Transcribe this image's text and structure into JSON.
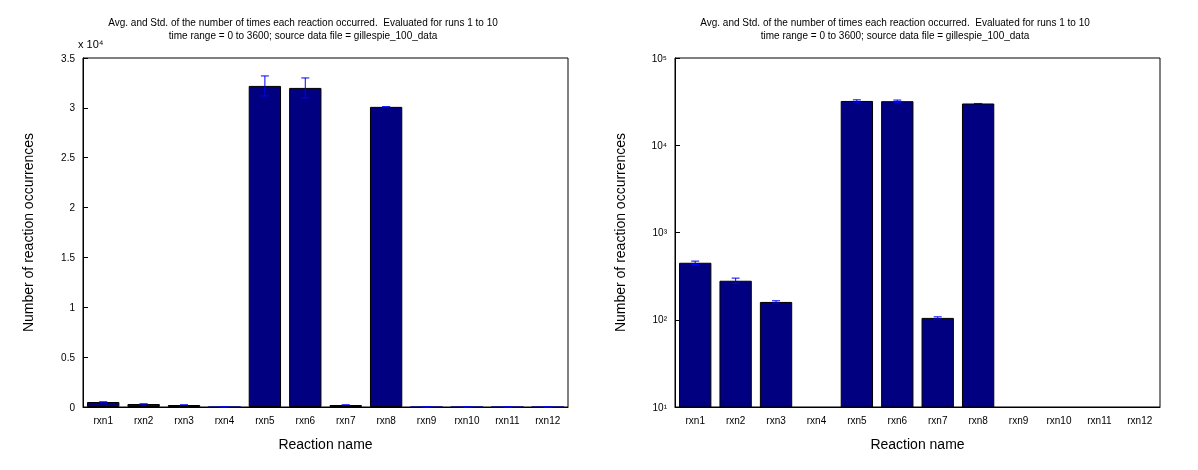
{
  "chart_data": [
    {
      "type": "bar",
      "title": "Avg. and Std. of the number of times each reaction occurred.  Evaluated for runs 1 to 10",
      "subtitle": "time range = 0 to 3600; source data file = gillespie_100_data",
      "xlabel": "Reaction name",
      "ylabel": "Number of reaction occurrences",
      "categories": [
        "rxn1",
        "rxn2",
        "rxn3",
        "rxn4",
        "rxn5",
        "rxn6",
        "rxn7",
        "rxn8",
        "rxn9",
        "rxn10",
        "rxn11",
        "rxn12"
      ],
      "values": [
        0.05,
        0.03,
        0.02,
        0,
        3.22,
        3.2,
        0.02,
        3.01,
        0,
        0,
        0,
        0
      ],
      "errors": [
        0,
        0,
        0,
        0,
        0.1,
        0.1,
        0,
        0,
        0,
        0,
        0,
        0
      ],
      "color": "#000080",
      "ylim": [
        0,
        3.5
      ],
      "yticks": [
        0,
        0.5,
        1,
        1.5,
        2,
        2.5,
        3,
        3.5
      ],
      "annotations": [
        "x 10⁴"
      ]
    },
    {
      "type": "bar",
      "title": "Avg. and Std. of the number of times each reaction occurred.  Evaluated for runs 1 to 10",
      "subtitle": "time range = 0 to 3600; source data file = gillespie_100_data",
      "xlabel": "Reaction name",
      "ylabel": "Number of reaction occurrences",
      "categories": [
        "rxn1",
        "rxn2",
        "rxn3",
        "rxn4",
        "rxn5",
        "rxn6",
        "rxn7",
        "rxn8",
        "rxn9",
        "rxn10",
        "rxn11",
        "rxn12"
      ],
      "values": [
        450,
        280,
        160,
        null,
        32200,
        32000,
        105,
        30100,
        null,
        null,
        null,
        null
      ],
      "errors": [
        20,
        20,
        5,
        null,
        950,
        950,
        3,
        30,
        null,
        null,
        null,
        null
      ],
      "color": "#000080",
      "log": true,
      "ylim": [
        10,
        100000
      ],
      "yticks": [
        {
          "value": 10,
          "label": "10¹"
        },
        {
          "value": 100,
          "label": "10²"
        },
        {
          "value": 1000,
          "label": "10³"
        },
        {
          "value": 10000,
          "label": "10⁴"
        },
        {
          "value": 100000,
          "label": "10⁵"
        }
      ]
    }
  ]
}
